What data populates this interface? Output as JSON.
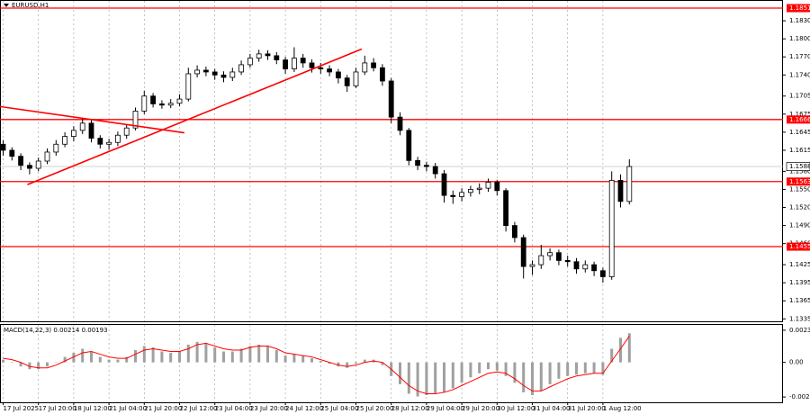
{
  "chart_data": {
    "type": "candlestick",
    "title": "EURUSD,H1",
    "color": "#000000",
    "candles": [
      [
        1.1625,
        1.1632,
        1.1606,
        1.1615
      ],
      [
        1.1615,
        1.162,
        1.1598,
        1.1605
      ],
      [
        1.1605,
        1.161,
        1.1582,
        1.159
      ],
      [
        1.159,
        1.1595,
        1.1575,
        1.1585
      ],
      [
        1.1585,
        1.1603,
        1.158,
        1.1597
      ],
      [
        1.1597,
        1.1618,
        1.1592,
        1.1612
      ],
      [
        1.1612,
        1.1632,
        1.1606,
        1.1625
      ],
      [
        1.1625,
        1.1645,
        1.162,
        1.1638
      ],
      [
        1.1638,
        1.1655,
        1.163,
        1.1648
      ],
      [
        1.1648,
        1.1668,
        1.1642,
        1.166
      ],
      [
        1.166,
        1.1665,
        1.1628,
        1.1635
      ],
      [
        1.1635,
        1.164,
        1.1618,
        1.1625
      ],
      [
        1.1625,
        1.1634,
        1.1616,
        1.1628
      ],
      [
        1.1628,
        1.1646,
        1.1622,
        1.164
      ],
      [
        1.164,
        1.1658,
        1.1634,
        1.1652
      ],
      [
        1.1652,
        1.1686,
        1.1648,
        1.168
      ],
      [
        1.168,
        1.1714,
        1.1675,
        1.1705
      ],
      [
        1.1705,
        1.171,
        1.1686,
        1.1692
      ],
      [
        1.1692,
        1.1698,
        1.1684,
        1.169
      ],
      [
        1.169,
        1.17,
        1.1685,
        1.1693
      ],
      [
        1.1693,
        1.1708,
        1.1688,
        1.17
      ],
      [
        1.17,
        1.1752,
        1.1696,
        1.1742
      ],
      [
        1.1742,
        1.1756,
        1.1736,
        1.1748
      ],
      [
        1.1748,
        1.1754,
        1.1738,
        1.1745
      ],
      [
        1.1745,
        1.175,
        1.1732,
        1.174
      ],
      [
        1.174,
        1.1746,
        1.1728,
        1.1736
      ],
      [
        1.1736,
        1.1752,
        1.173,
        1.1745
      ],
      [
        1.1745,
        1.1764,
        1.174,
        1.1757
      ],
      [
        1.1757,
        1.1775,
        1.1752,
        1.1768
      ],
      [
        1.1768,
        1.1782,
        1.1762,
        1.1775
      ],
      [
        1.1775,
        1.1781,
        1.1765,
        1.1772
      ],
      [
        1.1772,
        1.1778,
        1.1758,
        1.1765
      ],
      [
        1.1765,
        1.177,
        1.1742,
        1.175
      ],
      [
        1.175,
        1.1786,
        1.1745,
        1.1768
      ],
      [
        1.1768,
        1.1775,
        1.1752,
        1.176
      ],
      [
        1.176,
        1.1766,
        1.1744,
        1.1752
      ],
      [
        1.1752,
        1.176,
        1.1742,
        1.175
      ],
      [
        1.175,
        1.1756,
        1.1738,
        1.1745
      ],
      [
        1.1745,
        1.175,
        1.1726,
        1.1735
      ],
      [
        1.1735,
        1.174,
        1.1712,
        1.1722
      ],
      [
        1.1722,
        1.1752,
        1.1718,
        1.1745
      ],
      [
        1.1745,
        1.1772,
        1.174,
        1.176
      ],
      [
        1.176,
        1.1768,
        1.1746,
        1.1752
      ],
      [
        1.1752,
        1.1758,
        1.1722,
        1.173
      ],
      [
        1.173,
        1.1735,
        1.166,
        1.167
      ],
      [
        1.167,
        1.1678,
        1.164,
        1.1648
      ],
      [
        1.1648,
        1.1652,
        1.159,
        1.1598
      ],
      [
        1.1598,
        1.1604,
        1.1582,
        1.159
      ],
      [
        1.159,
        1.1596,
        1.158,
        1.1588
      ],
      [
        1.1588,
        1.1594,
        1.1568,
        1.1576
      ],
      [
        1.1576,
        1.1582,
        1.1528,
        1.154
      ],
      [
        1.154,
        1.1548,
        1.1526,
        1.1538
      ],
      [
        1.1538,
        1.1552,
        1.153,
        1.1545
      ],
      [
        1.1545,
        1.1556,
        1.1538,
        1.155
      ],
      [
        1.155,
        1.156,
        1.1542,
        1.1552
      ],
      [
        1.1552,
        1.1568,
        1.1546,
        1.1562
      ],
      [
        1.1562,
        1.1566,
        1.154,
        1.1548
      ],
      [
        1.1548,
        1.1552,
        1.148,
        1.149
      ],
      [
        1.149,
        1.1496,
        1.1462,
        1.147
      ],
      [
        1.147,
        1.1475,
        1.1402,
        1.1422
      ],
      [
        1.1422,
        1.1432,
        1.1408,
        1.1425
      ],
      [
        1.1425,
        1.1458,
        1.1418,
        1.144
      ],
      [
        1.144,
        1.1452,
        1.1432,
        1.1445
      ],
      [
        1.1445,
        1.145,
        1.1424,
        1.1432
      ],
      [
        1.1432,
        1.144,
        1.1422,
        1.143
      ],
      [
        1.143,
        1.1436,
        1.141,
        1.1418
      ],
      [
        1.1418,
        1.1432,
        1.1412,
        1.1425
      ],
      [
        1.1425,
        1.143,
        1.1406,
        1.1415
      ],
      [
        1.1415,
        1.142,
        1.1395,
        1.1405
      ],
      [
        1.1405,
        1.158,
        1.14,
        1.1565
      ],
      [
        1.1565,
        1.1575,
        1.152,
        1.153
      ],
      [
        1.153,
        1.16,
        1.1525,
        1.1588
      ]
    ],
    "ylim": [
      1.1331,
      1.1863
    ],
    "yticks": [
      {
        "value": 1.183,
        "label": "1.1830"
      },
      {
        "value": 1.18,
        "label": "1.1800"
      },
      {
        "value": 1.177,
        "label": "1.1770"
      },
      {
        "value": 1.174,
        "label": "1.1740"
      },
      1.1705,
      1.1675,
      1.1645,
      1.1615,
      {
        "value": 1.158,
        "label": "1.1580"
      },
      {
        "value": 1.155,
        "label": "1.1550"
      },
      {
        "value": 1.152,
        "label": "1.1520"
      },
      {
        "value": 1.149,
        "label": "1.1490"
      },
      {
        "value": 1.146,
        "label": "1.1460"
      },
      1.1425,
      1.1395,
      1.1365,
      1.1335
    ],
    "levels": [
      1.1851,
      1.1666,
      1.1563,
      1.1455
    ],
    "level_color": "#ff0000",
    "trend_lines": [
      {
        "x": [
          -0.5,
          20.6
        ],
        "y": [
          1.1688,
          1.1644
        ]
      },
      {
        "x": [
          2.8,
          40.7
        ],
        "y": [
          1.1558,
          1.1783
        ]
      }
    ],
    "xticks": [
      {
        "value": 0,
        "label": "17 Jul 2025"
      },
      {
        "value": 4,
        "label": "17 Jul 20:00"
      },
      {
        "value": 8,
        "label": "18 Jul 12:00"
      },
      {
        "value": 12,
        "label": "21 Jul 04:00"
      },
      {
        "value": 16,
        "label": "21 Jul 20:00"
      },
      {
        "value": 20,
        "label": "22 Jul 12:00"
      },
      {
        "value": 24,
        "label": "23 Jul 04:00"
      },
      {
        "value": 28,
        "label": "23 Jul 20:00"
      },
      {
        "value": 32,
        "label": "24 Jul 12:00"
      },
      {
        "value": 36,
        "label": "25 Jul 04:00"
      },
      {
        "value": 40,
        "label": "25 Jul 20:00"
      },
      {
        "value": 44,
        "label": "28 Jul 12:00"
      },
      {
        "value": 48,
        "label": "29 Jul 04:00"
      },
      {
        "value": 52,
        "label": "29 Jul 20:00"
      },
      {
        "value": 56,
        "label": "30 Jul 12:00"
      },
      {
        "value": 60,
        "label": "31 Jul 04:00"
      },
      {
        "value": 64,
        "label": "31 Jul 20:00"
      },
      {
        "value": 68,
        "label": "1 Aug 12:00"
      }
    ],
    "macd": {
      "title": "MACD(14,22,3)",
      "histogram_color": "#a0a0a0",
      "signal_color": "#ff0000",
      "histogram": [
        0.0002,
        0.0,
        -0.0003,
        -0.0005,
        -0.0005,
        -0.0003,
        0.0,
        0.0004,
        0.0007,
        0.001,
        0.0008,
        0.0004,
        0.0002,
        0.0002,
        0.0004,
        0.0009,
        0.0012,
        0.0011,
        0.0008,
        0.0007,
        0.0008,
        0.0013,
        0.0015,
        0.0014,
        0.0011,
        0.0008,
        0.0008,
        0.001,
        0.0012,
        0.0013,
        0.0012,
        0.0009,
        0.0005,
        0.0006,
        0.0005,
        0.0003,
        0.0001,
        -0.0001,
        -0.0003,
        -0.0004,
        -0.0001,
        0.0002,
        0.0002,
        -0.0002,
        -0.001,
        -0.0016,
        -0.0023,
        -0.0025,
        -0.0024,
        -0.0023,
        -0.0022,
        -0.0019,
        -0.0015,
        -0.0011,
        -0.0008,
        -0.0005,
        -0.0006,
        -0.001,
        -0.0015,
        -0.0022,
        -0.0024,
        -0.0021,
        -0.0016,
        -0.0012,
        -0.001,
        -0.0009,
        -0.0008,
        -0.0008,
        -0.0009,
        0.001,
        0.0018,
        0.00214
      ],
      "signal": [
        0.0003,
        0.0002,
        0.0,
        -0.0003,
        -0.0004,
        -0.0004,
        -0.0002,
        0.0001,
        0.0004,
        0.0007,
        0.0008,
        0.0006,
        0.0004,
        0.0003,
        0.0003,
        0.0006,
        0.0009,
        0.001,
        0.0009,
        0.0008,
        0.0008,
        0.001,
        0.0013,
        0.0014,
        0.0012,
        0.001,
        0.0009,
        0.0009,
        0.0011,
        0.0012,
        0.0012,
        0.001,
        0.0007,
        0.0006,
        0.0005,
        0.0004,
        0.0002,
        0.0,
        -0.0002,
        -0.0003,
        -0.0002,
        0.0,
        0.0001,
        0.0,
        -0.0005,
        -0.0011,
        -0.0017,
        -0.0021,
        -0.0023,
        -0.0023,
        -0.0022,
        -0.002,
        -0.0017,
        -0.0014,
        -0.0011,
        -0.0008,
        -0.0007,
        -0.0008,
        -0.0012,
        -0.0017,
        -0.0021,
        -0.0021,
        -0.0018,
        -0.0015,
        -0.0012,
        -0.001,
        -0.0009,
        -0.0008,
        -0.0008,
        0.0001,
        0.001,
        0.00193
      ],
      "ylim": [
        -0.00293,
        0.00275
      ],
      "yticks": [
        0.00236,
        {
          "value": 0,
          "label": "0.00"
        },
        -0.00254
      ]
    }
  }
}
